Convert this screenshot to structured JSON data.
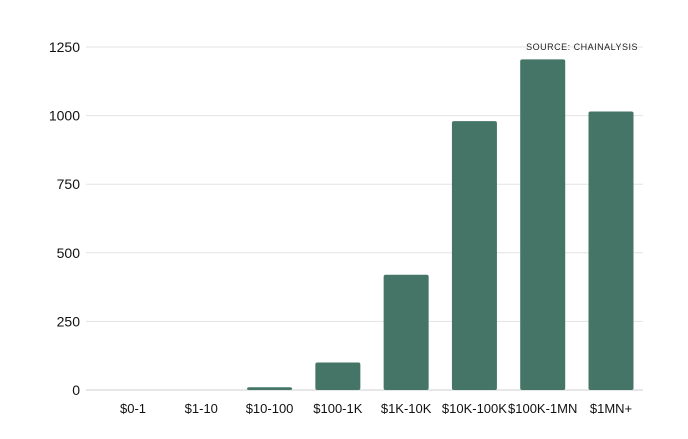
{
  "chart_data": {
    "type": "bar",
    "title": "",
    "xlabel": "",
    "ylabel": "",
    "source": "SOURCE: CHAINALYSIS",
    "categories": [
      "$0-1",
      "$1-10",
      "$10-100",
      "$100-1K",
      "$1K-10K",
      "$10K-100K",
      "$100K-1MN",
      "$1MN+"
    ],
    "values": [
      0,
      0,
      10,
      100,
      420,
      980,
      1205,
      1015
    ],
    "ylim": [
      0,
      1250
    ],
    "yticks": [
      0,
      250,
      500,
      750,
      1000,
      1250
    ],
    "grid": true,
    "legend": "none",
    "bar_color": "#447566"
  }
}
